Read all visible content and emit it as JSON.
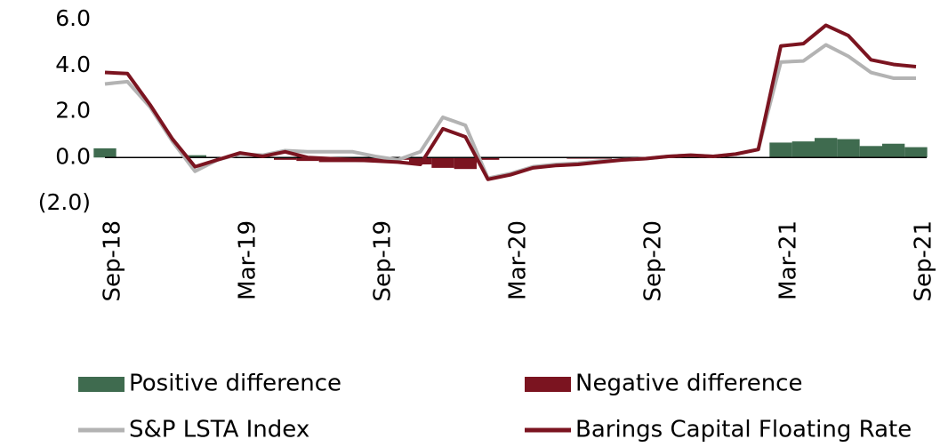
{
  "chart_data": {
    "type": "line",
    "categories": [
      "Sep-18",
      null,
      null,
      null,
      null,
      null,
      "Mar-19",
      null,
      null,
      null,
      null,
      null,
      "Sep-19",
      null,
      null,
      null,
      null,
      null,
      "Mar-20",
      null,
      null,
      null,
      null,
      null,
      "Sep-20",
      null,
      null,
      null,
      null,
      null,
      "Mar-21",
      null,
      null,
      null,
      null,
      null,
      "Sep-21"
    ],
    "bar_series": [
      {
        "name": "Positive difference",
        "color": "#3f6b4f",
        "values": [
          0.4,
          null,
          null,
          null,
          0.1,
          null,
          null,
          null,
          null,
          null,
          null,
          null,
          null,
          null,
          null,
          null,
          null,
          null,
          null,
          null,
          null,
          null,
          null,
          null,
          null,
          null,
          null,
          null,
          null,
          null,
          0.65,
          0.7,
          0.85,
          0.8,
          0.5,
          0.6,
          0.45
        ]
      },
      {
        "name": "Negative difference",
        "color": "#7b1420",
        "values": [
          null,
          null,
          null,
          null,
          null,
          null,
          null,
          null,
          -0.1,
          -0.15,
          -0.2,
          -0.2,
          -0.15,
          -0.1,
          -0.3,
          -0.45,
          -0.5,
          -0.1,
          null,
          null,
          null,
          -0.05,
          -0.05,
          null,
          null,
          null,
          null,
          null,
          null,
          null,
          null,
          null,
          null,
          null,
          null,
          null,
          null
        ]
      }
    ],
    "series": [
      {
        "name": "S&P LSTA Index",
        "color": "#b3b3b3",
        "values": [
          3.2,
          3.3,
          2.2,
          0.7,
          -0.6,
          -0.1,
          0.15,
          0.1,
          0.3,
          0.25,
          0.25,
          0.25,
          0.05,
          -0.1,
          0.25,
          1.75,
          1.4,
          -0.9,
          -0.7,
          -0.4,
          -0.3,
          -0.25,
          -0.15,
          -0.1,
          -0.05,
          0.05,
          0.1,
          0.05,
          0.15,
          0.35,
          4.15,
          4.2,
          4.9,
          4.4,
          3.7,
          3.45,
          3.45
        ]
      },
      {
        "name": "Barings Capital Floating Rate",
        "color": "#7b1420",
        "values": [
          3.7,
          3.65,
          2.3,
          0.8,
          -0.4,
          -0.1,
          0.2,
          0.05,
          0.25,
          0.0,
          -0.05,
          -0.1,
          -0.15,
          -0.2,
          -0.3,
          1.25,
          0.9,
          -0.95,
          -0.75,
          -0.45,
          -0.35,
          -0.3,
          -0.2,
          -0.1,
          -0.05,
          0.05,
          0.1,
          0.05,
          0.15,
          0.35,
          4.85,
          4.95,
          5.75,
          5.3,
          4.25,
          4.05,
          3.95
        ]
      }
    ],
    "ylim": [
      -2,
      6
    ],
    "yticks": [
      {
        "value": -2,
        "label": "(2.0)"
      },
      {
        "value": 0,
        "label": "0.0"
      },
      {
        "value": 2,
        "label": "2.0"
      },
      {
        "value": 4,
        "label": "4.0"
      },
      {
        "value": 6,
        "label": "6.0"
      }
    ],
    "negative_tick_color": "#e00000",
    "legend": "bottom"
  }
}
